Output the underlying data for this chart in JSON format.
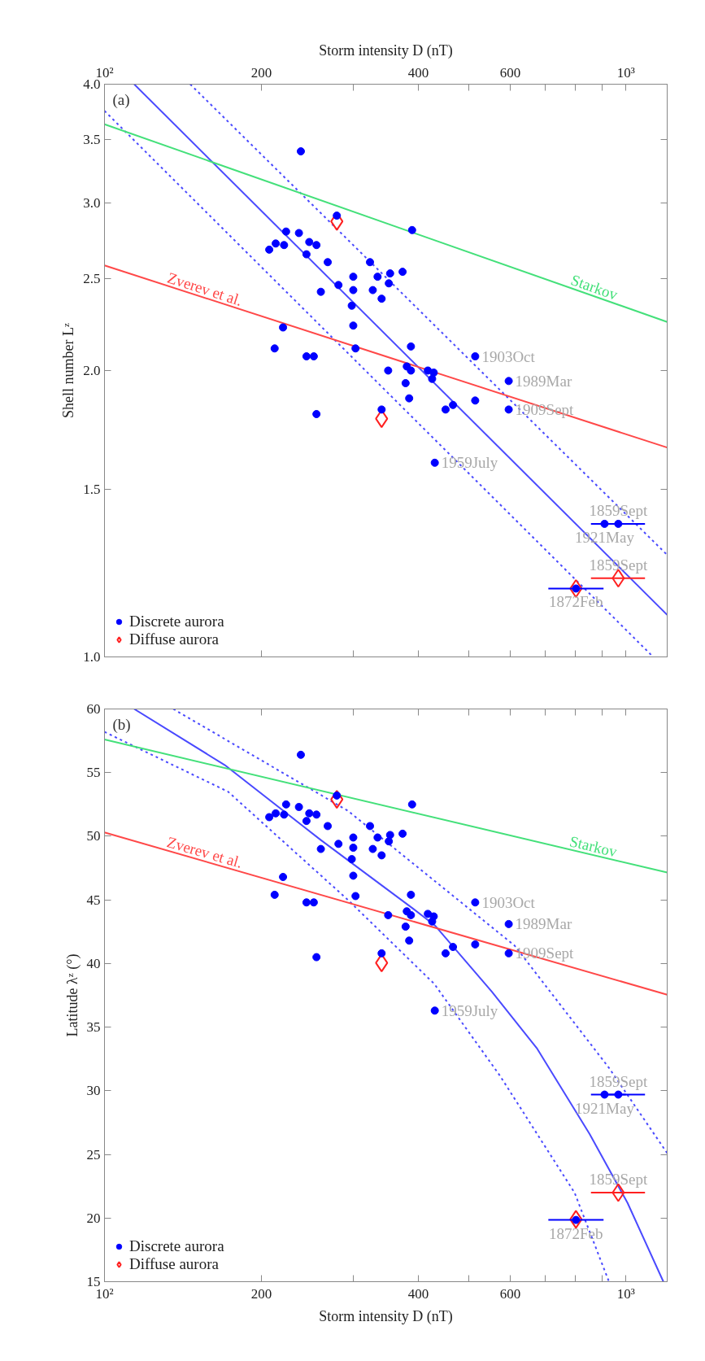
{
  "chart_data": [
    {
      "type": "scatter",
      "title": "(a)",
      "ylabel": "Shell number Lᶻ",
      "xlabel": "Storm intensity D (nT)",
      "log": "xy",
      "legend": "bottom left",
      "xlim": [
        100,
        1200
      ],
      "ylim": [
        1,
        4
      ],
      "xticks": [
        {
          "value": 100,
          "label": "10²"
        },
        200,
        {
          "value": 300,
          "label": null
        },
        400,
        {
          "value": 500,
          "label": null
        },
        600,
        {
          "value": 700,
          "label": null
        },
        {
          "value": 800,
          "label": null
        },
        {
          "value": 900,
          "label": null
        },
        {
          "value": 1000,
          "label": "10³"
        }
      ],
      "yticks": [
        {
          "value": 1,
          "label": "1.0"
        },
        1.5,
        {
          "value": 2,
          "label": "2.0"
        },
        2.5,
        {
          "value": 3,
          "label": "3.0"
        },
        3.5,
        {
          "value": 4,
          "label": "4.0"
        }
      ],
      "series": [
        {
          "name": "Discrete aurora",
          "marker": "circle",
          "color": "#0000ff",
          "x": [
            238,
            279,
            389,
            223,
            236,
            213,
            221,
            207,
            247,
            255,
            244,
            268,
            323,
            334,
            353,
            373,
            300,
            281,
            300,
            327,
            351,
            340,
            260,
            298,
            300,
            220,
            212,
            303,
            387,
            244,
            252,
            350,
            380,
            387,
            378,
            384,
            255,
            340,
            430,
            417,
            428,
            425,
            451,
            466,
            514,
            514,
            596,
            596,
            910,
            967,
            802
          ],
          "values": [
            3.4,
            2.91,
            2.81,
            2.8,
            2.79,
            2.72,
            2.71,
            2.68,
            2.73,
            2.71,
            2.65,
            2.6,
            2.6,
            2.51,
            2.53,
            2.54,
            2.51,
            2.46,
            2.43,
            2.43,
            2.47,
            2.38,
            2.42,
            2.34,
            2.23,
            2.22,
            2.11,
            2.11,
            2.12,
            2.07,
            2.07,
            2.0,
            2.02,
            2.0,
            1.94,
            1.87,
            1.8,
            1.82,
            1.6,
            2.0,
            1.99,
            1.96,
            1.82,
            1.84,
            2.07,
            1.86,
            1.95,
            1.82,
            1.38,
            1.38,
            1.18
          ],
          "xerrors": [
            null,
            null,
            null,
            null,
            null,
            null,
            null,
            null,
            null,
            null,
            null,
            null,
            null,
            null,
            null,
            null,
            null,
            null,
            null,
            null,
            null,
            null,
            null,
            null,
            null,
            null,
            null,
            null,
            null,
            null,
            null,
            null,
            null,
            null,
            null,
            null,
            null,
            null,
            null,
            null,
            null,
            null,
            null,
            null,
            null,
            null,
            null,
            null,
            [
              857,
              1000
            ],
            [
              910,
              1088
            ],
            [
              710,
              906
            ]
          ]
        },
        {
          "name": "Diffuse aurora",
          "marker": "diamond",
          "color": "#ff2020",
          "x": [
            279,
            340,
            802,
            967
          ],
          "values": [
            2.87,
            1.78,
            1.18,
            1.21
          ],
          "xerrors": [
            null,
            null,
            null,
            [
              857,
              1088
            ]
          ]
        },
        {
          "type": "line",
          "color": "#4a4aff",
          "line_style": "solid",
          "x": [
            114,
            1200
          ],
          "values": [
            4.0,
            1.107
          ]
        },
        {
          "type": "line",
          "color": "#4a4aff",
          "line_style": "dotted",
          "x": [
            146,
            1200
          ],
          "values": [
            4.0,
            1.28
          ]
        },
        {
          "type": "line",
          "color": "#4a4aff",
          "line_style": "dotted",
          "x": [
            100,
            1128
          ],
          "values": [
            3.75,
            1.0
          ]
        },
        {
          "type": "line",
          "color": "#44e07a",
          "line_style": "solid",
          "x": [
            100,
            1200
          ],
          "values": [
            3.63,
            2.25
          ]
        },
        {
          "type": "line",
          "color": "#ff4848",
          "line_style": "solid",
          "x": [
            100,
            1200
          ],
          "values": [
            2.58,
            1.66
          ]
        }
      ],
      "annotations": [
        {
          "text": "Starkov",
          "x": 859,
          "y": 2.4
        },
        {
          "text": "Zverev et al.",
          "x": 154,
          "y": 2.389
        },
        {
          "text": "1903Oct",
          "x": 514,
          "y": 2.07
        },
        {
          "text": "1989Mar",
          "x": 596,
          "y": 1.95
        },
        {
          "text": "1909Sept",
          "x": 596,
          "y": 1.82
        },
        {
          "text": "1959July",
          "x": 430,
          "y": 1.6
        },
        {
          "text": "1859Sept",
          "x": 967,
          "y": 1.38
        },
        {
          "text": "1921May",
          "x": 910,
          "y": 1.38
        },
        {
          "text": "1859Sept",
          "x": 967,
          "y": 1.21
        },
        {
          "text": "1872Feb",
          "x": 802,
          "y": 1.18
        }
      ]
    },
    {
      "type": "scatter",
      "title": "(b)",
      "xlabel": "Storm intensity D (nT)",
      "ylabel": "Latitude λᶻ (°)",
      "log": "x",
      "legend": "bottom left",
      "xlim": [
        100,
        1200
      ],
      "ylim": [
        15,
        60
      ],
      "xticks": [
        {
          "value": 100,
          "label": "10²"
        },
        200,
        {
          "value": 300,
          "label": null
        },
        400,
        {
          "value": 500,
          "label": null
        },
        600,
        {
          "value": 700,
          "label": null
        },
        {
          "value": 800,
          "label": null
        },
        {
          "value": 900,
          "label": null
        },
        {
          "value": 1000,
          "label": "10³"
        }
      ],
      "yticks": [
        15,
        20,
        25,
        30,
        35,
        40,
        45,
        50,
        55,
        60
      ],
      "series": [
        {
          "name": "Discrete aurora",
          "marker": "circle",
          "color": "#0000ff",
          "x": [
            238,
            279,
            389,
            223,
            236,
            213,
            221,
            207,
            247,
            255,
            244,
            268,
            323,
            334,
            353,
            373,
            300,
            281,
            300,
            327,
            351,
            340,
            260,
            298,
            300,
            220,
            212,
            303,
            387,
            244,
            252,
            350,
            380,
            387,
            378,
            384,
            255,
            340,
            430,
            417,
            428,
            425,
            451,
            466,
            514,
            514,
            596,
            596,
            910,
            967,
            802
          ],
          "values": [
            56.4,
            53.2,
            52.5,
            52.5,
            52.3,
            51.8,
            51.7,
            51.5,
            51.8,
            51.7,
            51.2,
            50.8,
            50.8,
            49.9,
            50.1,
            50.2,
            49.9,
            49.4,
            49.1,
            49.0,
            49.6,
            48.5,
            49.0,
            48.2,
            46.9,
            46.8,
            45.4,
            45.3,
            45.4,
            44.8,
            44.8,
            43.8,
            44.1,
            43.8,
            42.9,
            41.8,
            40.5,
            40.8,
            36.3,
            43.9,
            43.7,
            43.3,
            40.8,
            41.3,
            44.8,
            41.5,
            43.1,
            40.8,
            29.7,
            29.7,
            19.85
          ],
          "xerrors": [
            null,
            null,
            null,
            null,
            null,
            null,
            null,
            null,
            null,
            null,
            null,
            null,
            null,
            null,
            null,
            null,
            null,
            null,
            null,
            null,
            null,
            null,
            null,
            null,
            null,
            null,
            null,
            null,
            null,
            null,
            null,
            null,
            null,
            null,
            null,
            null,
            null,
            null,
            null,
            null,
            null,
            null,
            null,
            null,
            null,
            null,
            null,
            null,
            [
              857,
              1000
            ],
            [
              910,
              1088
            ],
            [
              710,
              906
            ]
          ]
        },
        {
          "name": "Diffuse aurora",
          "marker": "diamond",
          "color": "#ff2020",
          "x": [
            279,
            340,
            802,
            967
          ],
          "values": [
            52.9,
            40.05,
            19.9,
            22.0
          ],
          "xerrors": [
            null,
            null,
            null,
            [
              857,
              1088
            ]
          ]
        },
        {
          "type": "line",
          "color": "#4a4aff",
          "line_style": "solid",
          "x": [
            114,
            170,
            260,
            391,
            430,
            553,
            676,
            852,
            1007,
            1180
          ],
          "values": [
            60.0,
            55.6,
            49.7,
            44.3,
            43.0,
            37.8,
            33.3,
            26.6,
            21.2,
            15.0
          ]
        },
        {
          "type": "line",
          "color": "#4a4aff",
          "line_style": "dotted",
          "x": [
            135.5,
            293,
            612,
            928,
            1200
          ],
          "values": [
            60.0,
            52.0,
            41.4,
            31.8,
            25.1
          ]
        },
        {
          "type": "line",
          "color": "#4a4aff",
          "line_style": "dotted",
          "x": [
            100,
            172.6,
            293,
            429,
            573,
            797,
            928
          ],
          "values": [
            58.2,
            53.5,
            45.0,
            38.4,
            31.2,
            22.0,
            15.0
          ]
        },
        {
          "type": "line",
          "color": "#44e07a",
          "line_style": "solid",
          "x": [
            100,
            1200
          ],
          "values": [
            57.6,
            47.15
          ]
        },
        {
          "type": "line",
          "color": "#ff4848",
          "line_style": "solid",
          "x": [
            100,
            1200
          ],
          "values": [
            50.3,
            37.55
          ]
        }
      ],
      "annotations": [
        {
          "text": "Starkov",
          "x": 859,
          "y": 48.55
        },
        {
          "text": "Zverev et al.",
          "x": 154,
          "y": 48.1
        },
        {
          "text": "1903Oct",
          "x": 514,
          "y": 44.8
        },
        {
          "text": "1989Mar",
          "x": 596,
          "y": 43.1
        },
        {
          "text": "1909Sept",
          "x": 596,
          "y": 40.8
        },
        {
          "text": "1959July",
          "x": 430,
          "y": 36.3
        },
        {
          "text": "1859Sept",
          "x": 967,
          "y": 29.7
        },
        {
          "text": "1921May",
          "x": 910,
          "y": 29.7
        },
        {
          "text": "1859Sept",
          "x": 967,
          "y": 22.0
        },
        {
          "text": "1872Feb",
          "x": 802,
          "y": 19.85
        }
      ]
    }
  ]
}
